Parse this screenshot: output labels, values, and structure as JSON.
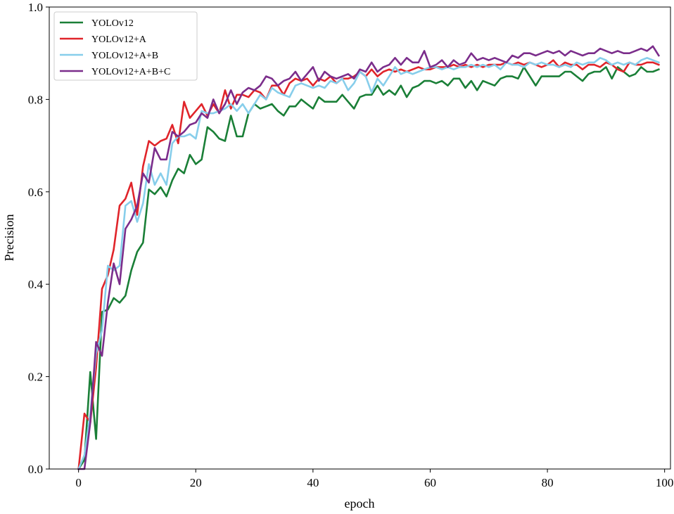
{
  "chart_data": {
    "type": "line",
    "title": "",
    "xlabel": "epoch",
    "ylabel": "Precision",
    "xlim": [
      -5,
      101
    ],
    "ylim": [
      0.0,
      1.0
    ],
    "xticks": [
      0,
      20,
      40,
      60,
      80,
      100
    ],
    "yticks": [
      0.0,
      0.2,
      0.4,
      0.6,
      0.8,
      1.0
    ],
    "xtick_labels": [
      "0",
      "20",
      "40",
      "60",
      "80",
      "100"
    ],
    "ytick_labels": [
      "0.0",
      "0.2",
      "0.4",
      "0.6",
      "0.8",
      "1.0"
    ],
    "grid": false,
    "legend_position": "upper-left",
    "x": [
      0,
      1,
      2,
      3,
      4,
      5,
      6,
      7,
      8,
      9,
      10,
      11,
      12,
      13,
      14,
      15,
      16,
      17,
      18,
      19,
      20,
      21,
      22,
      23,
      24,
      25,
      26,
      27,
      28,
      29,
      30,
      31,
      32,
      33,
      34,
      35,
      36,
      37,
      38,
      39,
      40,
      41,
      42,
      43,
      44,
      45,
      46,
      47,
      48,
      49,
      50,
      51,
      52,
      53,
      54,
      55,
      56,
      57,
      58,
      59,
      60,
      61,
      62,
      63,
      64,
      65,
      66,
      67,
      68,
      69,
      70,
      71,
      72,
      73,
      74,
      75,
      76,
      77,
      78,
      79,
      80,
      81,
      82,
      83,
      84,
      85,
      86,
      87,
      88,
      89,
      90,
      91,
      92,
      93,
      94,
      95,
      96,
      97,
      98,
      99
    ],
    "series": [
      {
        "name": "YOLOv12",
        "color": "#1a7f37",
        "values": [
          0.0,
          0.02,
          0.21,
          0.065,
          0.34,
          0.345,
          0.37,
          0.36,
          0.375,
          0.43,
          0.47,
          0.49,
          0.605,
          0.595,
          0.61,
          0.59,
          0.625,
          0.65,
          0.64,
          0.68,
          0.66,
          0.67,
          0.74,
          0.73,
          0.715,
          0.71,
          0.765,
          0.72,
          0.72,
          0.77,
          0.79,
          0.78,
          0.785,
          0.79,
          0.775,
          0.765,
          0.785,
          0.785,
          0.8,
          0.79,
          0.78,
          0.805,
          0.795,
          0.795,
          0.795,
          0.81,
          0.795,
          0.78,
          0.805,
          0.81,
          0.81,
          0.83,
          0.81,
          0.82,
          0.81,
          0.83,
          0.805,
          0.825,
          0.83,
          0.84,
          0.84,
          0.835,
          0.84,
          0.83,
          0.845,
          0.845,
          0.825,
          0.84,
          0.82,
          0.84,
          0.835,
          0.83,
          0.845,
          0.85,
          0.85,
          0.845,
          0.87,
          0.85,
          0.83,
          0.85,
          0.85,
          0.85,
          0.85,
          0.86,
          0.86,
          0.85,
          0.84,
          0.855,
          0.86,
          0.86,
          0.87,
          0.845,
          0.87,
          0.86,
          0.85,
          0.855,
          0.87,
          0.86,
          0.86,
          0.865
        ]
      },
      {
        "name": "YOLOv12+A",
        "color": "#e0242a",
        "values": [
          0.0,
          0.12,
          0.1,
          0.22,
          0.39,
          0.42,
          0.475,
          0.57,
          0.585,
          0.62,
          0.55,
          0.655,
          0.71,
          0.7,
          0.71,
          0.715,
          0.745,
          0.705,
          0.795,
          0.76,
          0.775,
          0.79,
          0.765,
          0.79,
          0.77,
          0.82,
          0.78,
          0.81,
          0.81,
          0.805,
          0.82,
          0.815,
          0.8,
          0.83,
          0.83,
          0.81,
          0.835,
          0.845,
          0.84,
          0.845,
          0.83,
          0.845,
          0.84,
          0.85,
          0.835,
          0.845,
          0.845,
          0.85,
          0.86,
          0.85,
          0.865,
          0.85,
          0.86,
          0.865,
          0.86,
          0.865,
          0.86,
          0.865,
          0.87,
          0.865,
          0.865,
          0.87,
          0.87,
          0.87,
          0.875,
          0.87,
          0.875,
          0.87,
          0.875,
          0.87,
          0.875,
          0.875,
          0.875,
          0.88,
          0.875,
          0.88,
          0.875,
          0.88,
          0.875,
          0.87,
          0.875,
          0.885,
          0.87,
          0.88,
          0.875,
          0.875,
          0.865,
          0.875,
          0.875,
          0.87,
          0.88,
          0.875,
          0.865,
          0.86,
          0.88,
          0.875,
          0.875,
          0.88,
          0.88,
          0.875
        ]
      },
      {
        "name": "YOLOv12+A+B",
        "color": "#87ceeb",
        "values": [
          0.0,
          0.03,
          0.12,
          0.25,
          0.3,
          0.44,
          0.43,
          0.44,
          0.57,
          0.58,
          0.535,
          0.575,
          0.66,
          0.615,
          0.64,
          0.615,
          0.705,
          0.72,
          0.72,
          0.725,
          0.715,
          0.775,
          0.77,
          0.77,
          0.775,
          0.78,
          0.79,
          0.775,
          0.79,
          0.77,
          0.79,
          0.81,
          0.8,
          0.825,
          0.815,
          0.81,
          0.805,
          0.83,
          0.835,
          0.83,
          0.825,
          0.83,
          0.825,
          0.84,
          0.835,
          0.845,
          0.82,
          0.835,
          0.86,
          0.85,
          0.815,
          0.845,
          0.83,
          0.85,
          0.87,
          0.855,
          0.86,
          0.855,
          0.86,
          0.865,
          0.87,
          0.87,
          0.865,
          0.87,
          0.865,
          0.87,
          0.87,
          0.875,
          0.87,
          0.875,
          0.87,
          0.875,
          0.865,
          0.88,
          0.875,
          0.875,
          0.87,
          0.88,
          0.875,
          0.88,
          0.875,
          0.875,
          0.87,
          0.875,
          0.87,
          0.88,
          0.875,
          0.88,
          0.88,
          0.89,
          0.885,
          0.875,
          0.88,
          0.875,
          0.88,
          0.875,
          0.885,
          0.89,
          0.885,
          0.88
        ]
      },
      {
        "name": "YOLOv12+A+B+C",
        "color": "#7b2d8b",
        "values": [
          0.0,
          0.0,
          0.1,
          0.275,
          0.245,
          0.36,
          0.445,
          0.4,
          0.52,
          0.54,
          0.57,
          0.64,
          0.62,
          0.695,
          0.67,
          0.67,
          0.73,
          0.72,
          0.73,
          0.745,
          0.75,
          0.77,
          0.76,
          0.8,
          0.77,
          0.79,
          0.82,
          0.79,
          0.815,
          0.825,
          0.82,
          0.83,
          0.85,
          0.845,
          0.83,
          0.84,
          0.845,
          0.86,
          0.84,
          0.855,
          0.87,
          0.84,
          0.86,
          0.85,
          0.845,
          0.85,
          0.855,
          0.845,
          0.865,
          0.86,
          0.88,
          0.86,
          0.87,
          0.875,
          0.89,
          0.875,
          0.89,
          0.88,
          0.88,
          0.905,
          0.87,
          0.875,
          0.885,
          0.87,
          0.885,
          0.875,
          0.88,
          0.9,
          0.885,
          0.89,
          0.885,
          0.89,
          0.885,
          0.88,
          0.895,
          0.89,
          0.9,
          0.9,
          0.895,
          0.9,
          0.905,
          0.9,
          0.905,
          0.895,
          0.905,
          0.9,
          0.895,
          0.9,
          0.9,
          0.91,
          0.905,
          0.9,
          0.905,
          0.9,
          0.9,
          0.905,
          0.91,
          0.905,
          0.915,
          0.895
        ]
      }
    ]
  }
}
